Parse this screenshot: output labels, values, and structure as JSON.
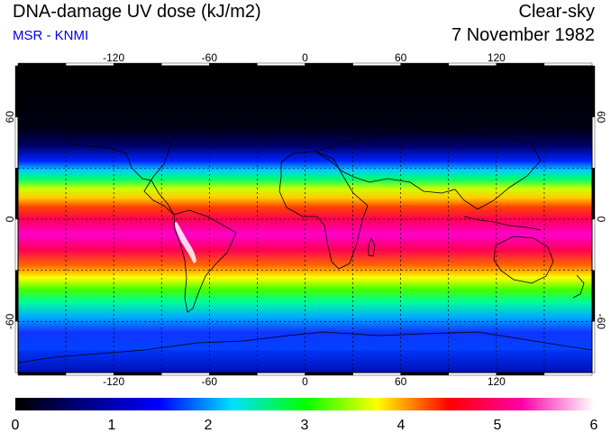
{
  "header": {
    "title": "DNA-damage UV dose (kJ/m2)",
    "source": "MSR - KNMI",
    "condition": "Clear-sky",
    "date": "7 November 1982"
  },
  "map": {
    "projection": "equirectangular",
    "lon_ticks": [
      "-120",
      "-60",
      "0",
      "60",
      "120"
    ],
    "lat_ticks": [
      "60",
      "0",
      "-60"
    ],
    "lon_values": [
      -120,
      -60,
      0,
      60,
      120
    ],
    "lat_values": [
      60,
      0,
      -60
    ],
    "lon_range": [
      -180,
      180
    ],
    "lat_range": [
      -90,
      90
    ],
    "grid": "dashed",
    "grid_step_deg": 30
  },
  "colorbar": {
    "ticks": [
      "0",
      "1",
      "2",
      "3",
      "4",
      "5",
      "6"
    ],
    "range": [
      0,
      6
    ],
    "colors": [
      "#000000",
      "#000088",
      "#0000ff",
      "#00e0ff",
      "#00ff00",
      "#ffff00",
      "#ff0000",
      "#ff00aa",
      "#ffffff"
    ]
  }
}
